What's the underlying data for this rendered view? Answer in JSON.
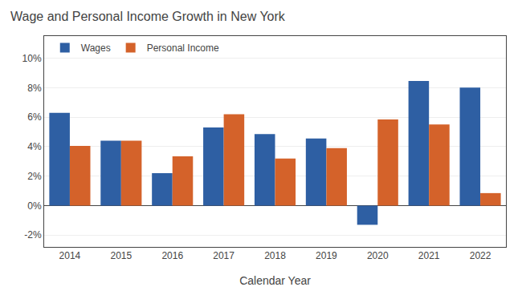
{
  "chart_data": {
    "type": "bar",
    "title": "Wage and Personal Income Growth in New York",
    "xlabel": "Calendar Year",
    "categories": [
      "2014",
      "2015",
      "2016",
      "2017",
      "2018",
      "2019",
      "2020",
      "2021",
      "2022"
    ],
    "series": [
      {
        "name": "Wages",
        "color": "#2E5FA3",
        "values": [
          6.3,
          4.4,
          2.2,
          5.3,
          4.85,
          4.55,
          -1.3,
          8.45,
          8.0
        ]
      },
      {
        "name": "Personal Income",
        "color": "#D4622A",
        "values": [
          4.05,
          4.4,
          3.35,
          6.2,
          3.2,
          3.9,
          5.85,
          5.5,
          0.85
        ]
      }
    ],
    "ylim": [
      -2.8,
      11.5
    ],
    "yticks": [
      {
        "value": -2,
        "label": "-2%"
      },
      {
        "value": 0,
        "label": "0%"
      },
      {
        "value": 2,
        "label": "2%"
      },
      {
        "value": 4,
        "label": "4%"
      },
      {
        "value": 6,
        "label": "6%"
      },
      {
        "value": 8,
        "label": "8%"
      },
      {
        "value": 10,
        "label": "10%"
      }
    ],
    "grid": true,
    "legend": "upper left"
  }
}
